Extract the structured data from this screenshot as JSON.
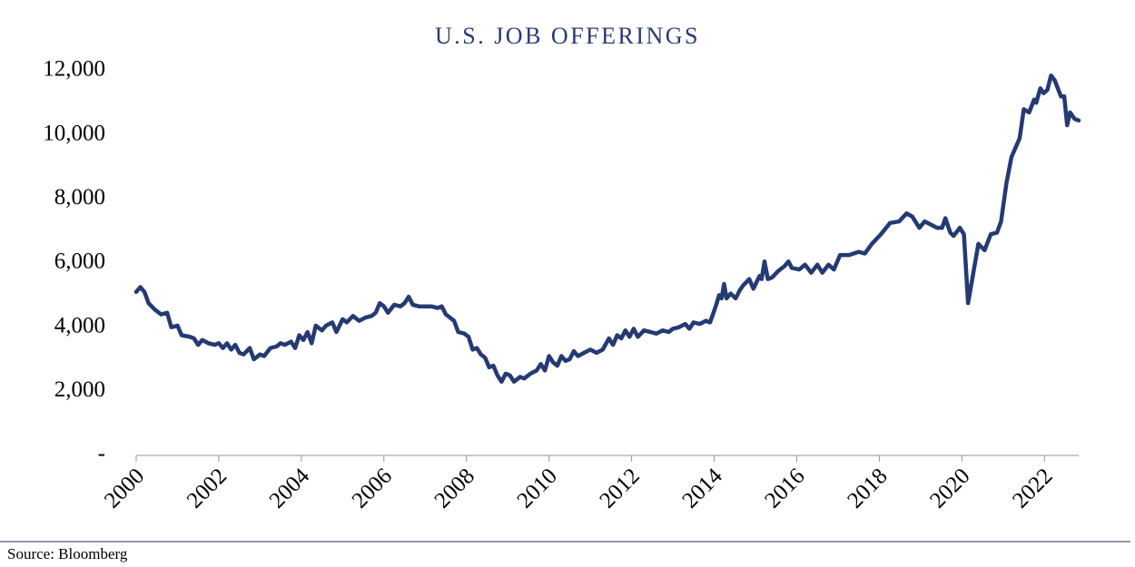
{
  "chart_data": {
    "type": "line",
    "title": "U.S. JOB OFFERINGS",
    "source": "Source: Bloomberg",
    "color": "#253a73",
    "grid": false,
    "xlim": [
      2000,
      2022.83
    ],
    "xticks": [
      2000,
      2002,
      2004,
      2006,
      2008,
      2010,
      2012,
      2014,
      2016,
      2018,
      2020,
      2022
    ],
    "ylim": [
      0,
      12000
    ],
    "yticks": [
      {
        "value": 0,
        "label": "-"
      },
      {
        "value": 2000,
        "label": "2,000"
      },
      {
        "value": 4000,
        "label": "4,000"
      },
      {
        "value": 6000,
        "label": "6,000"
      },
      {
        "value": 8000,
        "label": "8,000"
      },
      {
        "value": 10000,
        "label": "10,000"
      },
      {
        "value": 12000,
        "label": "12,000"
      }
    ],
    "x": [
      2000.0,
      2000.1,
      2000.2,
      2000.3,
      2000.45,
      2000.6,
      2000.75,
      2000.85,
      2001.0,
      2001.1,
      2001.3,
      2001.4,
      2001.5,
      2001.6,
      2001.75,
      2001.9,
      2002.0,
      2002.1,
      2002.2,
      2002.3,
      2002.4,
      2002.5,
      2002.6,
      2002.75,
      2002.85,
      2003.0,
      2003.1,
      2003.25,
      2003.4,
      2003.5,
      2003.6,
      2003.75,
      2003.85,
      2003.95,
      2004.05,
      2004.15,
      2004.25,
      2004.35,
      2004.5,
      2004.6,
      2004.75,
      2004.85,
      2005.0,
      2005.1,
      2005.25,
      2005.4,
      2005.55,
      2005.7,
      2005.8,
      2005.9,
      2006.0,
      2006.1,
      2006.25,
      2006.4,
      2006.5,
      2006.6,
      2006.7,
      2006.85,
      2007.0,
      2007.15,
      2007.3,
      2007.4,
      2007.5,
      2007.6,
      2007.7,
      2007.8,
      2007.95,
      2008.05,
      2008.15,
      2008.25,
      2008.35,
      2008.45,
      2008.55,
      2008.65,
      2008.75,
      2008.85,
      2008.95,
      2009.05,
      2009.15,
      2009.3,
      2009.4,
      2009.55,
      2009.7,
      2009.8,
      2009.9,
      2010.0,
      2010.1,
      2010.2,
      2010.3,
      2010.4,
      2010.5,
      2010.6,
      2010.7,
      2010.85,
      2011.0,
      2011.15,
      2011.3,
      2011.45,
      2011.55,
      2011.65,
      2011.75,
      2011.85,
      2011.95,
      2012.05,
      2012.15,
      2012.3,
      2012.45,
      2012.6,
      2012.75,
      2012.9,
      2013.0,
      2013.15,
      2013.3,
      2013.4,
      2013.5,
      2013.65,
      2013.8,
      2013.9,
      2013.97,
      2014.05,
      2014.12,
      2014.18,
      2014.24,
      2014.3,
      2014.4,
      2014.52,
      2014.62,
      2014.7,
      2014.85,
      2014.95,
      2015.1,
      2015.15,
      2015.22,
      2015.3,
      2015.4,
      2015.55,
      2015.7,
      2015.8,
      2015.88,
      2016.06,
      2016.2,
      2016.35,
      2016.5,
      2016.62,
      2016.77,
      2016.9,
      2017.05,
      2017.27,
      2017.5,
      2017.65,
      2017.82,
      2018.04,
      2018.26,
      2018.48,
      2018.66,
      2018.8,
      2018.97,
      2019.1,
      2019.25,
      2019.4,
      2019.52,
      2019.6,
      2019.72,
      2019.8,
      2019.95,
      2020.05,
      2020.15,
      2020.4,
      2020.55,
      2020.7,
      2020.85,
      2020.95,
      2021.08,
      2021.2,
      2021.4,
      2021.5,
      2021.63,
      2021.75,
      2021.8,
      2021.9,
      2021.98,
      2022.07,
      2022.16,
      2022.25,
      2022.4,
      2022.48,
      2022.55,
      2022.62,
      2022.73,
      2022.83
    ],
    "values": [
      5100,
      5250,
      5100,
      4750,
      4550,
      4400,
      4450,
      4000,
      4050,
      3750,
      3700,
      3650,
      3450,
      3600,
      3500,
      3450,
      3500,
      3350,
      3500,
      3300,
      3450,
      3200,
      3150,
      3350,
      3000,
      3150,
      3100,
      3350,
      3400,
      3500,
      3450,
      3550,
      3350,
      3750,
      3600,
      3850,
      3500,
      4050,
      3900,
      4050,
      4150,
      3850,
      4250,
      4150,
      4350,
      4200,
      4300,
      4350,
      4450,
      4750,
      4650,
      4450,
      4700,
      4650,
      4750,
      4950,
      4700,
      4650,
      4650,
      4650,
      4600,
      4650,
      4400,
      4300,
      4200,
      3850,
      3800,
      3700,
      3300,
      3350,
      3150,
      3050,
      2750,
      2800,
      2500,
      2300,
      2550,
      2500,
      2300,
      2450,
      2400,
      2550,
      2650,
      2850,
      2650,
      3100,
      2900,
      2800,
      3100,
      2950,
      3000,
      3250,
      3100,
      3200,
      3300,
      3200,
      3300,
      3650,
      3450,
      3750,
      3650,
      3900,
      3700,
      3950,
      3700,
      3900,
      3850,
      3800,
      3900,
      3850,
      3950,
      4000,
      4100,
      3950,
      4150,
      4100,
      4200,
      4150,
      4400,
      4700,
      5000,
      4900,
      5350,
      4900,
      5050,
      4900,
      5150,
      5300,
      5500,
      5200,
      5600,
      5500,
      6050,
      5500,
      5550,
      5750,
      5900,
      6050,
      5850,
      5800,
      5950,
      5700,
      5950,
      5700,
      5950,
      5800,
      6250,
      6250,
      6350,
      6300,
      6600,
      6900,
      7250,
      7300,
      7550,
      7450,
      7100,
      7300,
      7200,
      7100,
      7100,
      7400,
      6950,
      6850,
      7100,
      6900,
      4750,
      6600,
      6400,
      6900,
      6950,
      7300,
      8500,
      9300,
      9900,
      10800,
      10700,
      11100,
      11000,
      11450,
      11300,
      11400,
      11850,
      11700,
      11200,
      11200,
      10300,
      10700,
      10500,
      10450
    ]
  }
}
